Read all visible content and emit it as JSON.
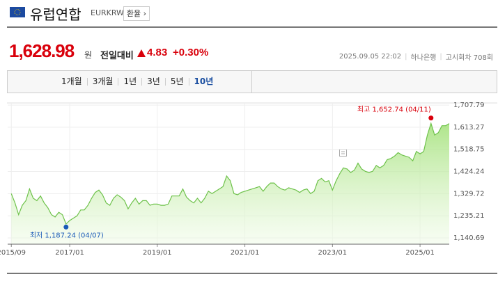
{
  "header": {
    "title": "유럽연합",
    "code": "EURKRW",
    "button": "환율"
  },
  "quote": {
    "price": "1,628.98",
    "unit": "원",
    "change_label": "전일대비",
    "change": "4.83",
    "change_pct": "+0.30%",
    "datetime": "2025.09.05 22:02",
    "bank": "하나은행",
    "round": "고시회차 708회"
  },
  "tabs": [
    "1개월",
    "3개월",
    "1년",
    "3년",
    "5년",
    "10년"
  ],
  "selected_tab": "10년",
  "chart_data": {
    "type": "line",
    "x": [
      "2015/09",
      "2015/10",
      "2015/11",
      "2015/12",
      "2016/01",
      "2016/02",
      "2016/03",
      "2016/04",
      "2016/05",
      "2016/06",
      "2016/07",
      "2016/08",
      "2016/09",
      "2016/10",
      "2016/11",
      "2016/12",
      "2017/01",
      "2017/02",
      "2017/03",
      "2017/04",
      "2017/05",
      "2017/06",
      "2017/07",
      "2017/08",
      "2017/09",
      "2017/10",
      "2017/11",
      "2017/12",
      "2018/01",
      "2018/02",
      "2018/03",
      "2018/04",
      "2018/05",
      "2018/06",
      "2018/07",
      "2018/08",
      "2018/09",
      "2018/10",
      "2018/11",
      "2018/12",
      "2019/01",
      "2019/02",
      "2019/03",
      "2019/04",
      "2019/05",
      "2019/06",
      "2019/07",
      "2019/08",
      "2019/09",
      "2019/10",
      "2019/11",
      "2019/12",
      "2020/01",
      "2020/02",
      "2020/03",
      "2020/04",
      "2020/05",
      "2020/06",
      "2020/07",
      "2020/08",
      "2020/09",
      "2020/10",
      "2020/11",
      "2020/12",
      "2021/01",
      "2021/02",
      "2021/03",
      "2021/04",
      "2021/05",
      "2021/06",
      "2021/07",
      "2021/08",
      "2021/09",
      "2021/10",
      "2021/11",
      "2021/12",
      "2022/01",
      "2022/02",
      "2022/03",
      "2022/04",
      "2022/05",
      "2022/06",
      "2022/07",
      "2022/08",
      "2022/09",
      "2022/10",
      "2022/11",
      "2022/12",
      "2023/01",
      "2023/02",
      "2023/03",
      "2023/04",
      "2023/05",
      "2023/06",
      "2023/07",
      "2023/08",
      "2023/09",
      "2023/10",
      "2023/11",
      "2023/12",
      "2024/01",
      "2024/02",
      "2024/03",
      "2024/04",
      "2024/05",
      "2024/06",
      "2024/07",
      "2024/08",
      "2024/09",
      "2024/10",
      "2024/11",
      "2024/12",
      "2025/01",
      "2025/02",
      "2025/03",
      "2025/04",
      "2025/05",
      "2025/06",
      "2025/07",
      "2025/08",
      "2025/09"
    ],
    "values": [
      1330,
      1290,
      1240,
      1280,
      1300,
      1350,
      1310,
      1300,
      1320,
      1290,
      1270,
      1240,
      1230,
      1250,
      1240,
      1200,
      1215,
      1225,
      1235,
      1260,
      1260,
      1280,
      1310,
      1335,
      1345,
      1325,
      1290,
      1280,
      1310,
      1325,
      1315,
      1300,
      1265,
      1290,
      1310,
      1285,
      1300,
      1300,
      1280,
      1285,
      1285,
      1280,
      1280,
      1285,
      1320,
      1320,
      1320,
      1350,
      1315,
      1300,
      1290,
      1310,
      1290,
      1310,
      1340,
      1330,
      1340,
      1350,
      1360,
      1405,
      1385,
      1330,
      1325,
      1335,
      1340,
      1345,
      1350,
      1355,
      1360,
      1340,
      1360,
      1375,
      1375,
      1360,
      1350,
      1345,
      1355,
      1350,
      1345,
      1335,
      1345,
      1350,
      1330,
      1340,
      1385,
      1395,
      1380,
      1385,
      1345,
      1385,
      1415,
      1440,
      1435,
      1420,
      1430,
      1460,
      1435,
      1425,
      1420,
      1425,
      1450,
      1440,
      1450,
      1475,
      1480,
      1490,
      1505,
      1495,
      1490,
      1485,
      1470,
      1510,
      1500,
      1510,
      1580,
      1630,
      1580,
      1590,
      1620,
      1620,
      1628.98
    ],
    "color": "#6ec24b",
    "xlim": [
      "2015/08",
      "2025/09"
    ],
    "xticks": [
      "2015/09",
      "2017/01",
      "2019/01",
      "2021/01",
      "2023/01",
      "2025/01"
    ],
    "ylim": [
      1114,
      1717
    ],
    "yticks": [
      {
        "value": 1140.69,
        "label": "1,140.69"
      },
      {
        "value": 1235.21,
        "label": "1,235.21"
      },
      {
        "value": 1329.72,
        "label": "1,329.72"
      },
      {
        "value": 1424.24,
        "label": "1,424.24"
      },
      {
        "value": 1518.75,
        "label": "1,518.75"
      },
      {
        "value": 1613.27,
        "label": "1,613.27"
      },
      {
        "value": 1707.79,
        "label": "1,707.79"
      }
    ],
    "grid": true,
    "annotations": [
      {
        "label": "최고 1,652.74 (04/11)",
        "x": "2025/04",
        "value": 1652.74,
        "color": "#d9000b"
      },
      {
        "label": "최저 1,187.24 (04/07)",
        "x": "2016/12",
        "value": 1187.24,
        "color": "#1a5ab8"
      }
    ]
  }
}
